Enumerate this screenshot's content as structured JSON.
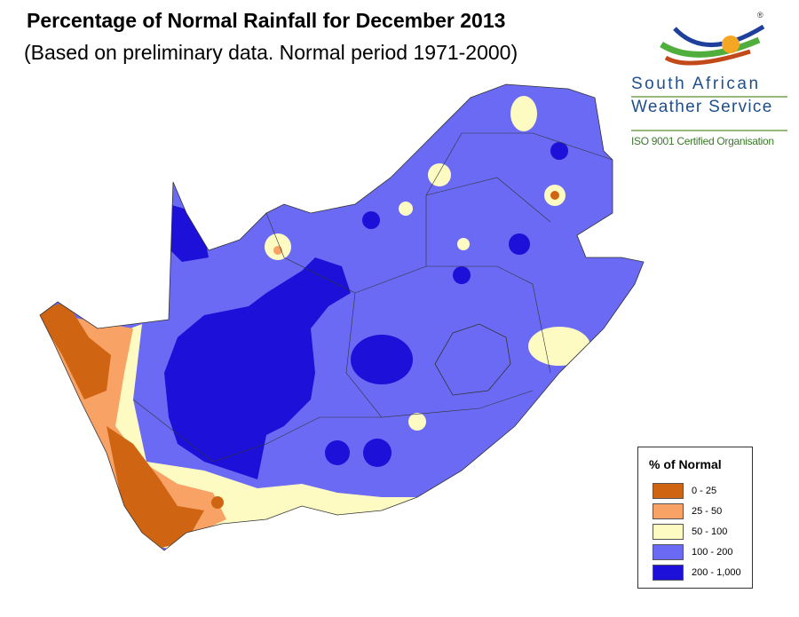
{
  "title": "Percentage of Normal Rainfall for December  2013",
  "subtitle": "(Based on preliminary data. Normal period 1971-2000)",
  "logo": {
    "line1": "South African",
    "line2": "Weather Service",
    "iso": "ISO 9001 Certified Organisation",
    "registered": "®"
  },
  "legend": {
    "title": "% of Normal",
    "items": [
      {
        "label": "0 - 25",
        "color": "#cf6512"
      },
      {
        "label": "25 - 50",
        "color": "#f9a266"
      },
      {
        "label": "50 - 100",
        "color": "#fdfbc2"
      },
      {
        "label": "100 - 200",
        "color": "#6a6af4"
      },
      {
        "label": "200 - 1,000",
        "color": "#1d10d8"
      }
    ]
  }
}
